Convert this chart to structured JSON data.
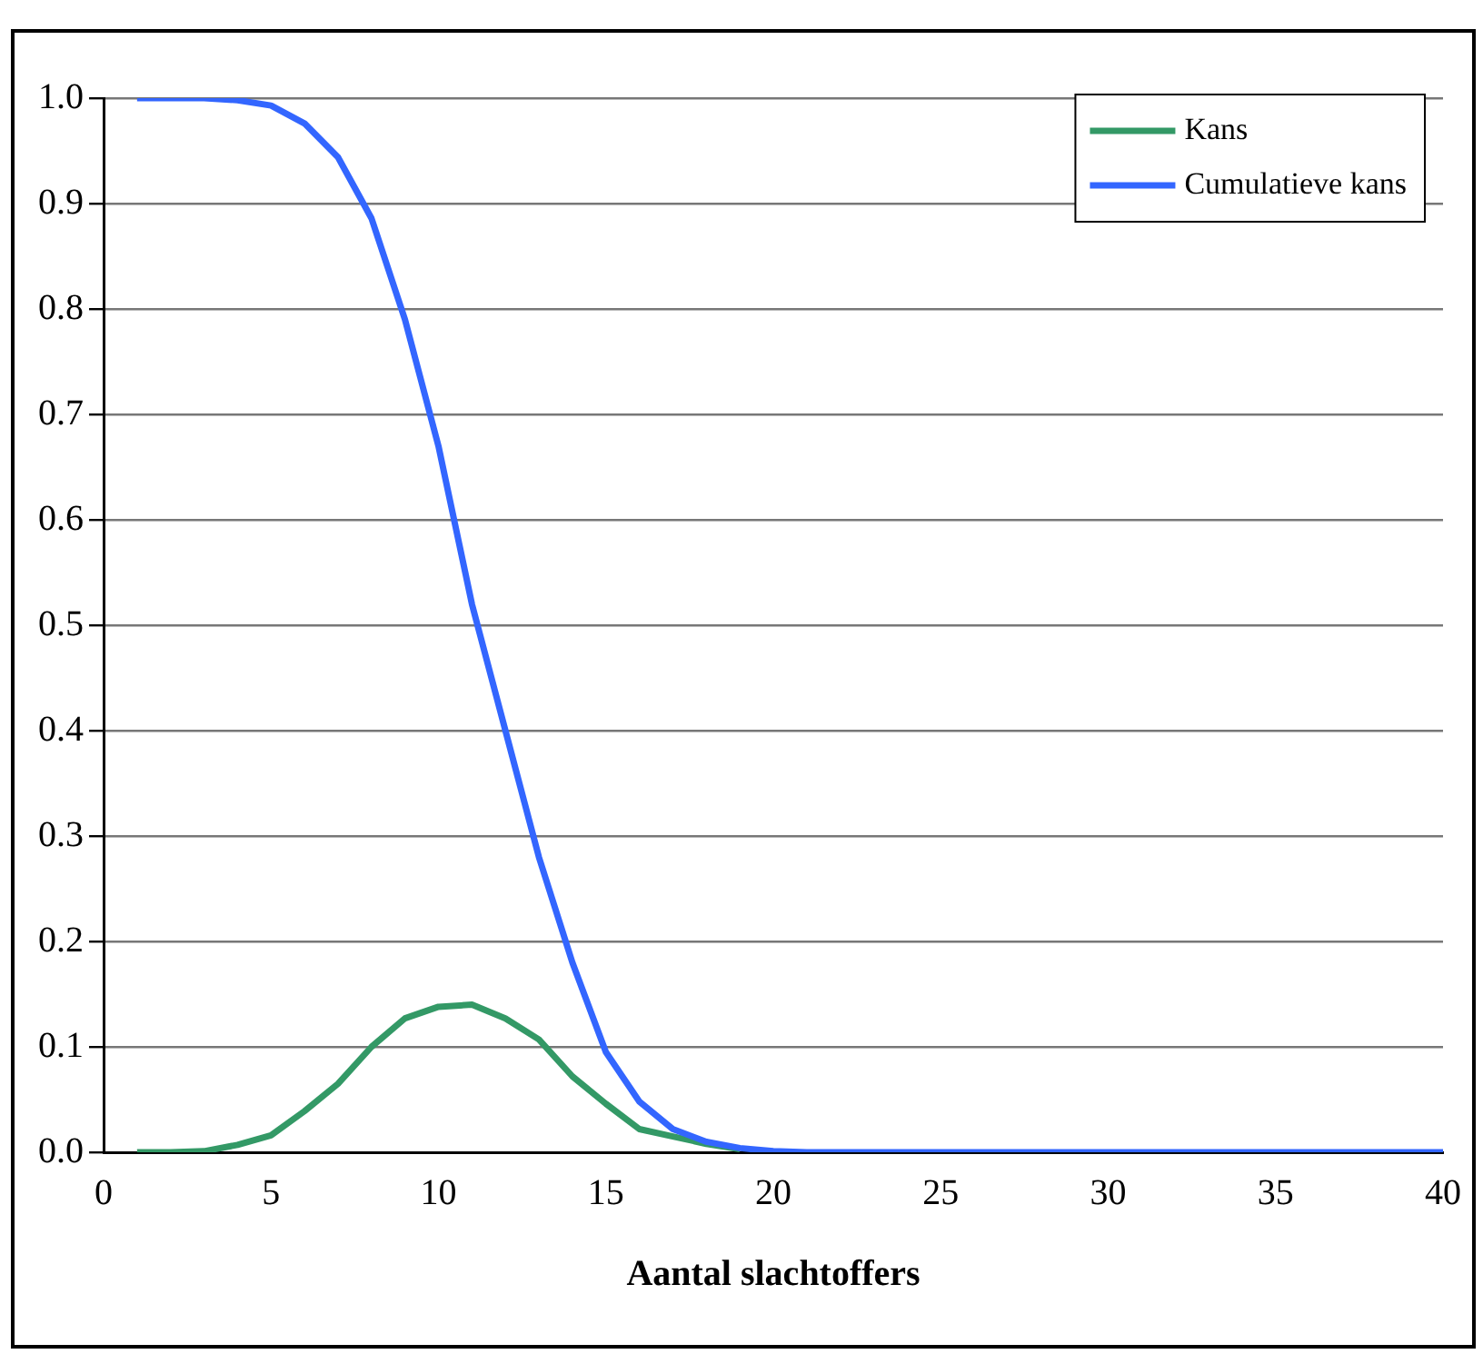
{
  "chart_data": {
    "type": "line",
    "xlabel": "Aantal slachtoffers",
    "x": [
      1,
      2,
      3,
      4,
      5,
      6,
      7,
      8,
      9,
      10,
      11,
      12,
      13,
      14,
      15,
      16,
      17,
      18,
      19,
      20,
      21,
      22,
      23,
      24,
      25,
      26,
      27,
      28,
      29,
      30,
      31,
      32,
      33,
      34,
      35,
      36,
      37,
      38,
      39,
      40
    ],
    "series": [
      {
        "name": "Kans",
        "color": "#339966",
        "values": [
          0,
          0,
          0.001,
          0.007,
          0.016,
          0.039,
          0.065,
          0.1,
          0.127,
          0.138,
          0.14,
          0.127,
          0.107,
          0.072,
          0.046,
          0.022,
          0.015,
          0.008,
          0.003,
          null,
          null,
          null,
          null,
          null,
          null,
          null,
          null,
          null,
          null,
          null,
          null,
          null,
          null,
          null,
          null,
          null,
          null,
          null,
          null,
          null
        ]
      },
      {
        "name": "Cumulatieve kans",
        "color": "#3366ff",
        "values": [
          1,
          1,
          1,
          0.998,
          0.993,
          0.976,
          0.944,
          0.886,
          0.79,
          0.67,
          0.52,
          0.4,
          0.28,
          0.18,
          0.095,
          0.048,
          0.022,
          0.01,
          0.004,
          0.001,
          0,
          0,
          0,
          0,
          0,
          0,
          0,
          0,
          0,
          0,
          0,
          0,
          0,
          0,
          0,
          0,
          0,
          0,
          0,
          0
        ]
      }
    ],
    "xlim": [
      0,
      40
    ],
    "xticks": [
      0,
      5,
      10,
      15,
      20,
      25,
      30,
      35,
      40
    ],
    "ylim": [
      0,
      1
    ],
    "yticks": [
      {
        "value": 0,
        "label": "0.0"
      },
      {
        "value": 0.1,
        "label": "0.1"
      },
      {
        "value": 0.2,
        "label": "0.2"
      },
      {
        "value": 0.3,
        "label": "0.3"
      },
      {
        "value": 0.4,
        "label": "0.4"
      },
      {
        "value": 0.5,
        "label": "0.5"
      },
      {
        "value": 0.6,
        "label": "0.6"
      },
      {
        "value": 0.7,
        "label": "0.7"
      },
      {
        "value": 0.8,
        "label": "0.8"
      },
      {
        "value": 0.9,
        "label": "0.9"
      },
      {
        "value": 1,
        "label": "1.0"
      }
    ],
    "grid": "y",
    "legend": "top right",
    "marker": "none",
    "line_style": "solid"
  }
}
